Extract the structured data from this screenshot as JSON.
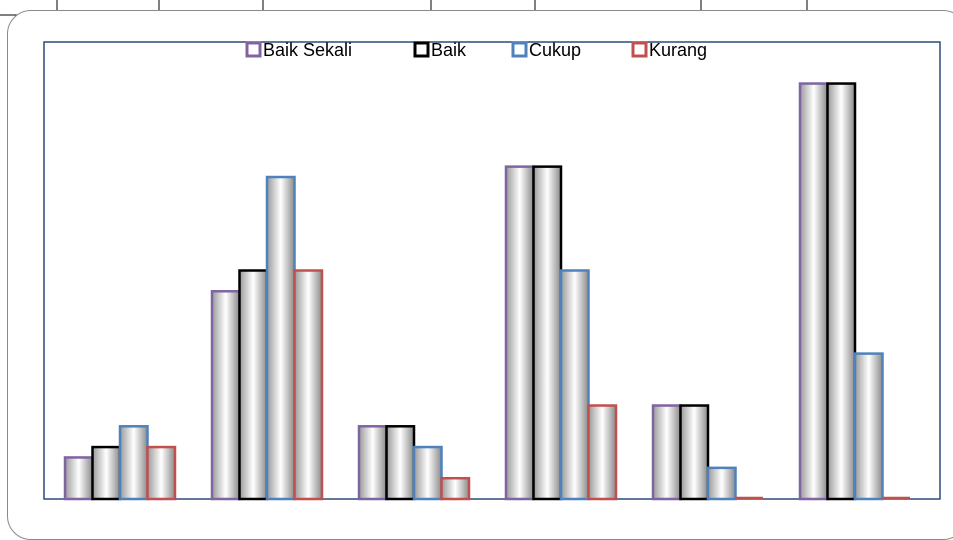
{
  "colors": {
    "frame": "#8a8a8a",
    "plot_border": "#2c4a7a",
    "bar_fill_edge": "#9a9a9a",
    "bar_fill_center": "#ffffff"
  },
  "chart_data": {
    "type": "bar",
    "title": "",
    "xlabel": "",
    "ylabel": "",
    "categories": [
      "",
      "",
      "",
      "",
      "",
      ""
    ],
    "ylim": [
      0,
      22
    ],
    "grid": false,
    "legend_position": "top",
    "series": [
      {
        "name": "Baik Sekali",
        "color": "#8064a2",
        "values": [
          2,
          10,
          3.5,
          16,
          4.5,
          20
        ]
      },
      {
        "name": "Baik",
        "color": "#000000",
        "values": [
          2.5,
          11,
          3.5,
          16,
          4.5,
          20
        ]
      },
      {
        "name": "Cukup",
        "color": "#4f81bd",
        "values": [
          3.5,
          15.5,
          2.5,
          11,
          1.5,
          7
        ]
      },
      {
        "name": "Kurang",
        "color": "#c0504d",
        "values": [
          2.5,
          11,
          1,
          4.5,
          0,
          0
        ]
      }
    ]
  }
}
